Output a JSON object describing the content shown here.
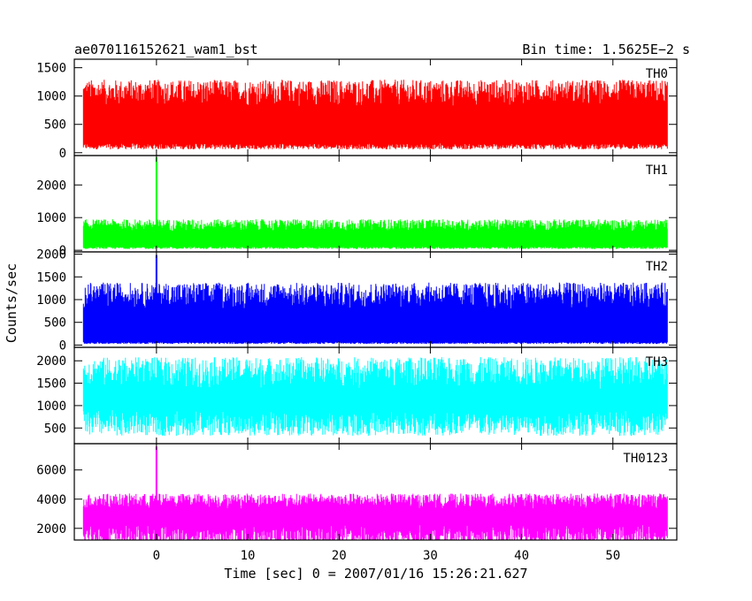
{
  "header": {
    "title": "ae070116152621_wam1_bst",
    "bin_time": "Bin time: 1.5625E−2 s"
  },
  "colors": {
    "TH0": "#ff0000",
    "TH1": "#00ff00",
    "TH2": "#0000ff",
    "TH3": "#00ffff",
    "TH0123": "#ff00ff"
  },
  "chart_data": {
    "type": "line",
    "xlabel": "Time [sec] 0 = 2007/01/16 15:26:21.627",
    "ylabel": "Counts/sec",
    "xlim": [
      -9,
      57
    ],
    "x_ticks": [
      0,
      10,
      20,
      30,
      40,
      50
    ],
    "x_range_data": [
      -8,
      56
    ],
    "grid": false,
    "panels": [
      {
        "name": "TH0",
        "ylim": [
          -50,
          1650
        ],
        "y_ticks": [
          0,
          500,
          1000,
          1500
        ],
        "base_mean": 730,
        "noise_amp": 430,
        "min_floor": 120,
        "spikes": []
      },
      {
        "name": "TH1",
        "ylim": [
          -50,
          2900
        ],
        "y_ticks": [
          0,
          1000,
          2000
        ],
        "base_mean": 520,
        "noise_amp": 330,
        "min_floor": 80,
        "spikes": [
          {
            "x": 0,
            "y": 2850
          }
        ]
      },
      {
        "name": "TH2",
        "ylim": [
          -50,
          2050
        ],
        "y_ticks": [
          0,
          500,
          1000,
          1500,
          2000
        ],
        "base_mean": 700,
        "noise_amp": 520,
        "min_floor": 50,
        "spikes": [
          {
            "x": 0,
            "y": 1980
          }
        ]
      },
      {
        "name": "TH3",
        "ylim": [
          150,
          2300
        ],
        "y_ticks": [
          500,
          1000,
          1500,
          2000
        ],
        "base_mean": 1250,
        "noise_amp": 640,
        "min_floor": 650,
        "spikes": []
      },
      {
        "name": "TH0123",
        "ylim": [
          1200,
          7800
        ],
        "y_ticks": [
          2000,
          4000,
          6000
        ],
        "base_mean": 3150,
        "noise_amp": 950,
        "min_floor": 1600,
        "spikes": [
          {
            "x": 0,
            "y": 7600
          }
        ]
      }
    ]
  }
}
